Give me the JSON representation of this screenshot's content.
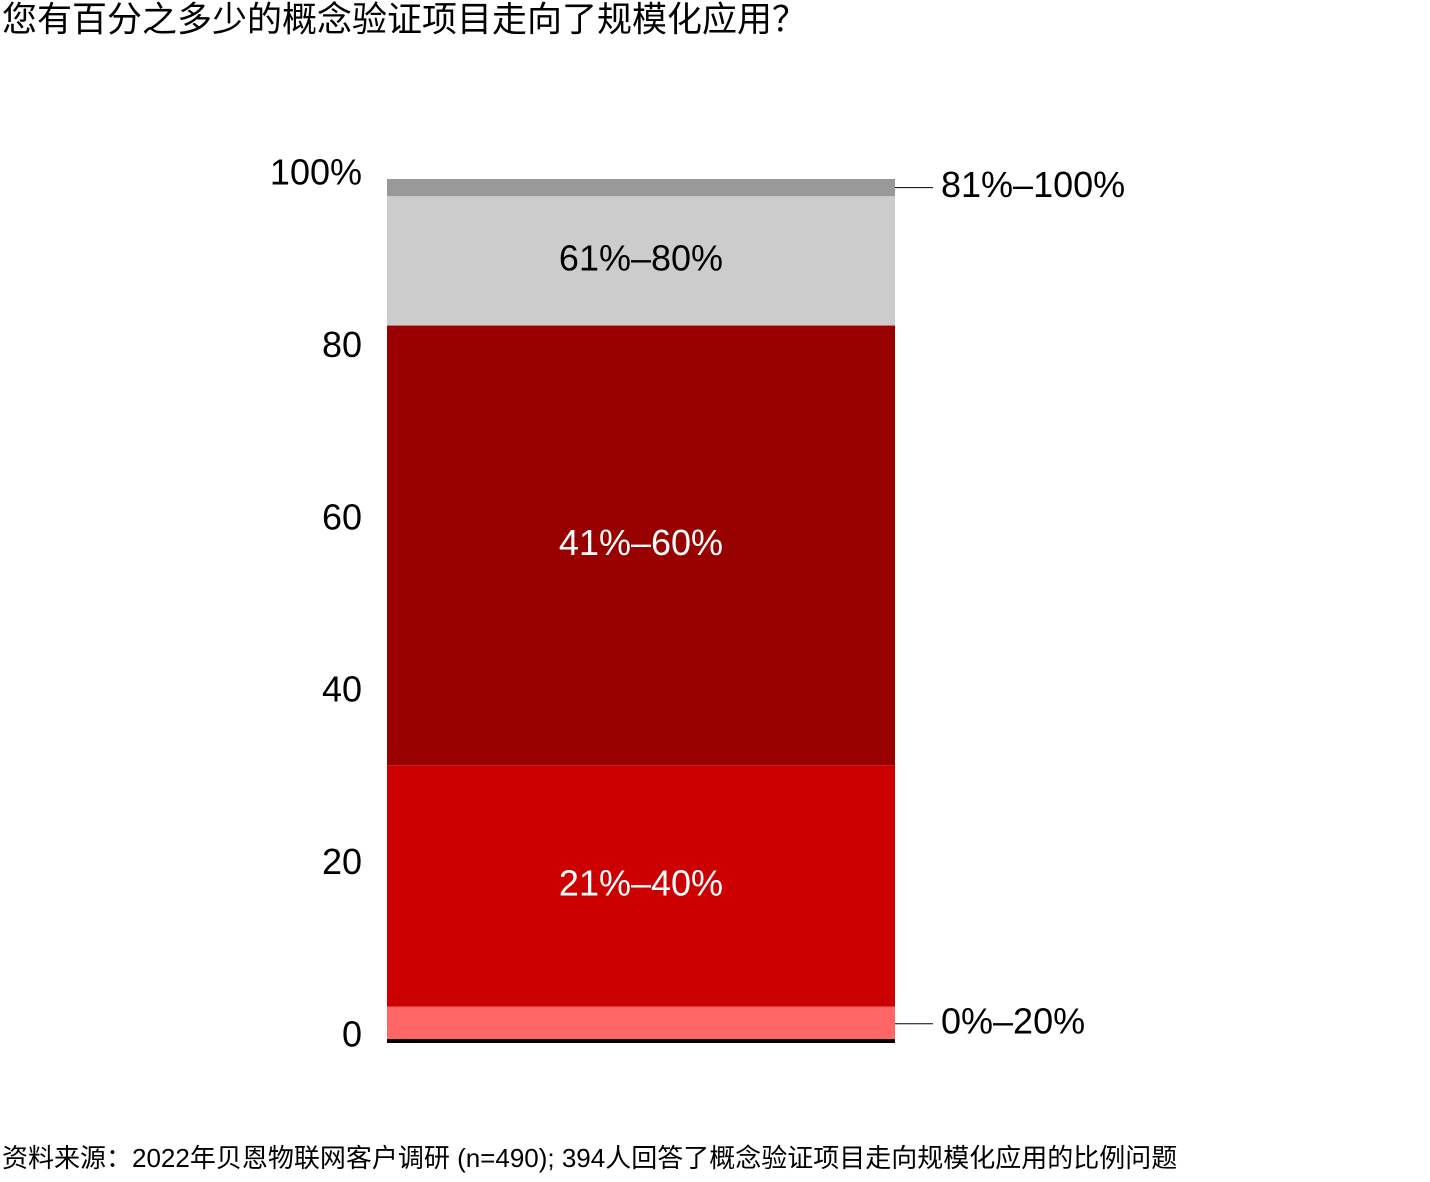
{
  "chart_data": {
    "type": "bar",
    "stacked": true,
    "title": "您有百分之多少的概念验证项目走向了规模化应用？",
    "source": "资料来源：2022年贝恩物联网客户调研 (n=490); 394人回答了概念验证项目走向规模化应用的比例问题",
    "series": [
      {
        "name": "0%–20%",
        "color": "#ff6666",
        "values": [
          4
        ]
      },
      {
        "name": "21%–40%",
        "color": "#cc0000",
        "values": [
          28
        ]
      },
      {
        "name": "41%–60%",
        "color": "#990000",
        "values": [
          51
        ]
      },
      {
        "name": "61%–80%",
        "color": "#cccccc",
        "values": [
          15
        ]
      },
      {
        "name": "81%–100%",
        "color": "#999999",
        "values": [
          2
        ]
      }
    ],
    "ylim": [
      0,
      100
    ],
    "yticks": [
      0,
      20,
      40,
      60,
      80,
      {
        "value": 100,
        "label": "100%"
      }
    ],
    "grid": false
  }
}
